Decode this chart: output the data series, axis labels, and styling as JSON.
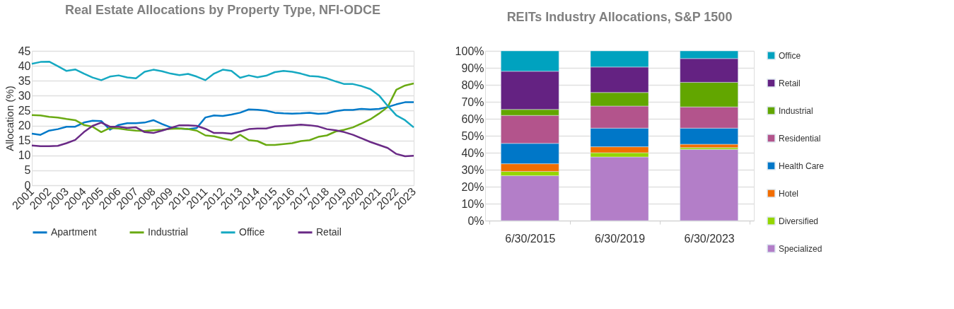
{
  "chart_data": [
    {
      "type": "line",
      "title": "Real Estate Allocations by Property Type, NFI-ODCE",
      "ylabel": "Allocation (%)",
      "x": [
        2001,
        2001.5,
        2002,
        2002.5,
        2003,
        2003.5,
        2004,
        2004.5,
        2005,
        2005.5,
        2006,
        2006.5,
        2007,
        2007.5,
        2008,
        2008.5,
        2009,
        2009.5,
        2010,
        2010.5,
        2011,
        2011.5,
        2012,
        2012.5,
        2013,
        2013.5,
        2014,
        2014.5,
        2015,
        2015.5,
        2016,
        2016.5,
        2017,
        2017.5,
        2018,
        2018.5,
        2019,
        2019.5,
        2020,
        2020.5,
        2021,
        2021.5,
        2022,
        2022.5,
        2023
      ],
      "series": [
        {
          "name": "Apartment",
          "color": "#0079c8",
          "values": [
            17.3,
            16.9,
            18.3,
            18.8,
            19.6,
            19.6,
            21.0,
            21.6,
            21.5,
            18.6,
            20.2,
            20.8,
            20.8,
            21.0,
            21.8,
            20.5,
            19.4,
            19.0,
            18.8,
            19.2,
            22.7,
            23.4,
            23.2,
            23.7,
            24.3,
            25.4,
            25.3,
            25.0,
            24.3,
            24.1,
            24.0,
            24.1,
            24.3,
            23.9,
            24.1,
            24.8,
            25.2,
            25.2,
            25.6,
            25.4,
            25.6,
            26.2,
            27.1,
            27.8,
            27.8
          ]
        },
        {
          "name": "Industrial",
          "color": "#6aaa13",
          "values": [
            23.5,
            23.4,
            22.9,
            22.7,
            22.2,
            21.8,
            20.2,
            19.6,
            17.8,
            19.2,
            19.0,
            18.6,
            18.3,
            18.2,
            18.4,
            18.6,
            18.9,
            19.0,
            18.8,
            18.3,
            16.7,
            16.4,
            15.7,
            15.1,
            16.9,
            15.1,
            14.8,
            13.5,
            13.5,
            13.8,
            14.1,
            14.8,
            15.1,
            16.2,
            16.7,
            18.0,
            18.6,
            19.4,
            20.7,
            22.1,
            24.0,
            26.2,
            32.0,
            33.4,
            34.1
          ]
        },
        {
          "name": "Office",
          "color": "#16a9c2",
          "values": [
            40.7,
            41.3,
            41.4,
            39.9,
            38.3,
            38.8,
            37.4,
            36.1,
            35.2,
            36.4,
            36.8,
            36.1,
            35.8,
            38.0,
            38.7,
            38.2,
            37.4,
            36.9,
            37.3,
            36.4,
            35.2,
            37.4,
            38.7,
            38.3,
            36.0,
            36.8,
            36.2,
            36.7,
            37.9,
            38.3,
            38.0,
            37.4,
            36.6,
            36.4,
            35.8,
            34.8,
            33.9,
            33.9,
            33.2,
            32.2,
            30.1,
            26.6,
            23.4,
            21.8,
            19.4
          ]
        },
        {
          "name": "Retail",
          "color": "#6a2a86",
          "values": [
            13.3,
            13.1,
            13.1,
            13.2,
            14.1,
            15.2,
            17.8,
            19.9,
            21.0,
            19.6,
            19.6,
            19.2,
            19.4,
            17.8,
            17.5,
            18.3,
            19.2,
            20.1,
            20.1,
            19.9,
            18.9,
            17.5,
            17.5,
            17.3,
            18.0,
            18.8,
            19.0,
            19.0,
            19.7,
            19.9,
            20.1,
            20.3,
            20.1,
            19.7,
            18.8,
            18.4,
            17.8,
            16.9,
            15.7,
            14.5,
            13.5,
            12.5,
            10.5,
            9.7,
            9.9
          ]
        }
      ],
      "xlim": [
        2001,
        2023
      ],
      "xticks": [
        2001,
        2002,
        2003,
        2004,
        2005,
        2006,
        2007,
        2008,
        2009,
        2010,
        2011,
        2012,
        2013,
        2014,
        2015,
        2016,
        2017,
        2018,
        2019,
        2020,
        2021,
        2022,
        2023
      ],
      "ylim": [
        0,
        45
      ],
      "yticks": [
        0,
        5,
        10,
        15,
        20,
        25,
        30,
        35,
        40,
        45
      ],
      "grid": "y",
      "legend": "bottom",
      "line_style": "solid"
    },
    {
      "type": "bar",
      "title": "REITs Industry Allocations, S&P 1500",
      "stacked": true,
      "categories": [
        "6/30/2015",
        "6/30/2019",
        "6/30/2023"
      ],
      "series": [
        {
          "name": "Specialized",
          "color": "#b37ec8",
          "values": [
            26.5,
            37.5,
            42
          ]
        },
        {
          "name": "Diversified",
          "color": "#95d600",
          "values": [
            2.5,
            2.5,
            1
          ]
        },
        {
          "name": "Hotel",
          "color": "#f26d00",
          "values": [
            4.5,
            3.5,
            2
          ]
        },
        {
          "name": "Health Care",
          "color": "#0077c8",
          "values": [
            12,
            11,
            9.5
          ]
        },
        {
          "name": "Residential",
          "color": "#b3548c",
          "values": [
            16.5,
            13,
            12.5
          ]
        },
        {
          "name": "Industrial",
          "color": "#62a600",
          "values": [
            3.5,
            8,
            14.5
          ]
        },
        {
          "name": "Retail",
          "color": "#642282",
          "values": [
            22.5,
            15,
            14
          ]
        },
        {
          "name": "Office",
          "color": "#00a2bf",
          "values": [
            12,
            9.5,
            4.5
          ]
        }
      ],
      "ylim": [
        0,
        100
      ],
      "yticks": [
        {
          "value": 0,
          "label": "0%"
        },
        {
          "value": 10,
          "label": "10%"
        },
        {
          "value": 20,
          "label": "20%"
        },
        {
          "value": 30,
          "label": "30%"
        },
        {
          "value": 40,
          "label": "40%"
        },
        {
          "value": 50,
          "label": "50%"
        },
        {
          "value": 60,
          "label": "60%"
        },
        {
          "value": 70,
          "label": "70%"
        },
        {
          "value": 80,
          "label": "80%"
        },
        {
          "value": 90,
          "label": "90%"
        },
        {
          "value": 100,
          "label": "100%"
        }
      ],
      "grid": "y",
      "legend": "right"
    }
  ]
}
